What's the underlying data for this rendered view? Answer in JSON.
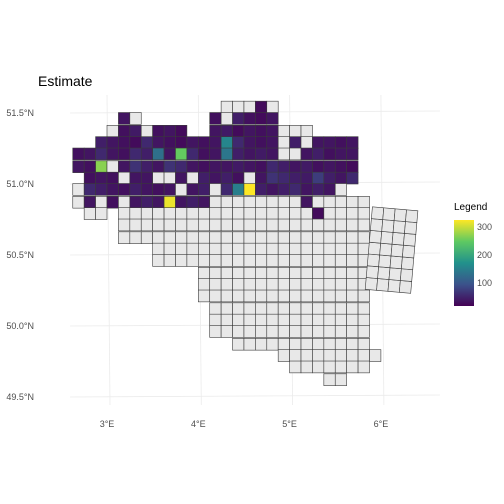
{
  "title": "Estimate",
  "axes": {
    "x_ticks": [
      "3°E",
      "4°E",
      "5°E",
      "6°E"
    ],
    "y_ticks": [
      "51.5°N",
      "51.0°N",
      "50.5°N",
      "50.0°N",
      "49.5°N"
    ]
  },
  "legend": {
    "title": "Legend",
    "ticks": [
      "300",
      "200",
      "100"
    ],
    "color_scale": "viridis",
    "range": [
      0,
      330
    ]
  },
  "colors": {
    "missing": "#e8e8e8",
    "cell_border": "#3a3a3a",
    "low": "#440154",
    "high": "#fde725"
  },
  "chart_data": {
    "type": "heatmap",
    "description_of_values": "estimate per grid cell; null = no estimate (grey)",
    "x_range_deg": [
      2.5,
      6.4
    ],
    "y_range_deg": [
      49.45,
      51.55
    ],
    "cell_size_deg": [
      0.125,
      0.0833
    ],
    "rows": [
      {
        "lat": 51.5,
        "cells": [
          [
            4.25,
            null
          ],
          [
            4.375,
            null
          ],
          [
            4.5,
            null
          ],
          [
            4.625,
            10
          ],
          [
            4.75,
            null
          ]
        ]
      },
      {
        "lat": 51.42,
        "cells": [
          [
            3.125,
            20
          ],
          [
            3.25,
            null
          ],
          [
            4.125,
            15
          ],
          [
            4.25,
            null
          ],
          [
            4.375,
            30
          ],
          [
            4.5,
            15
          ],
          [
            4.625,
            10
          ],
          [
            4.75,
            20
          ]
        ]
      },
      {
        "lat": 51.33,
        "cells": [
          [
            3.0,
            null
          ],
          [
            3.125,
            15
          ],
          [
            3.25,
            25
          ],
          [
            3.375,
            null
          ],
          [
            3.5,
            15
          ],
          [
            3.625,
            20
          ],
          [
            3.75,
            10
          ],
          [
            4.125,
            20
          ],
          [
            4.25,
            25
          ],
          [
            4.375,
            10
          ],
          [
            4.5,
            20
          ],
          [
            4.625,
            15
          ],
          [
            4.75,
            20
          ],
          [
            4.875,
            null
          ],
          [
            5.0,
            null
          ],
          [
            5.125,
            null
          ]
        ]
      },
      {
        "lat": 51.25,
        "cells": [
          [
            2.875,
            30
          ],
          [
            3.0,
            20
          ],
          [
            3.125,
            15
          ],
          [
            3.25,
            10
          ],
          [
            3.375,
            40
          ],
          [
            3.5,
            20
          ],
          [
            3.625,
            15
          ],
          [
            3.75,
            10
          ],
          [
            3.875,
            20
          ],
          [
            4.0,
            15
          ],
          [
            4.125,
            20
          ],
          [
            4.25,
            150
          ],
          [
            4.375,
            40
          ],
          [
            4.5,
            20
          ],
          [
            4.625,
            15
          ],
          [
            4.75,
            20
          ],
          [
            4.875,
            null
          ],
          [
            5.0,
            30
          ],
          [
            5.125,
            null
          ],
          [
            5.25,
            20
          ],
          [
            5.375,
            20
          ],
          [
            5.5,
            15
          ],
          [
            5.625,
            20
          ]
        ]
      },
      {
        "lat": 51.17,
        "cells": [
          [
            2.625,
            15
          ],
          [
            2.75,
            20
          ],
          [
            2.875,
            40
          ],
          [
            3.0,
            20
          ],
          [
            3.125,
            15
          ],
          [
            3.25,
            40
          ],
          [
            3.375,
            30
          ],
          [
            3.5,
            120
          ],
          [
            3.625,
            20
          ],
          [
            3.75,
            250
          ],
          [
            3.875,
            40
          ],
          [
            4.0,
            15
          ],
          [
            4.125,
            20
          ],
          [
            4.25,
            130
          ],
          [
            4.375,
            30
          ],
          [
            4.5,
            20
          ],
          [
            4.625,
            25
          ],
          [
            4.75,
            20
          ],
          [
            4.875,
            null
          ],
          [
            5.0,
            null
          ],
          [
            5.125,
            20
          ],
          [
            5.25,
            30
          ],
          [
            5.375,
            15
          ],
          [
            5.5,
            20
          ],
          [
            5.625,
            20
          ]
        ]
      },
      {
        "lat": 51.08,
        "cells": [
          [
            2.625,
            20
          ],
          [
            2.75,
            15
          ],
          [
            2.875,
            270
          ],
          [
            3.0,
            null
          ],
          [
            3.125,
            20
          ],
          [
            3.25,
            50
          ],
          [
            3.375,
            30
          ],
          [
            3.5,
            20
          ],
          [
            3.625,
            50
          ],
          [
            3.75,
            40
          ],
          [
            3.875,
            20
          ],
          [
            4.0,
            15
          ],
          [
            4.125,
            20
          ],
          [
            4.25,
            20
          ],
          [
            4.375,
            25
          ],
          [
            4.5,
            20
          ],
          [
            4.625,
            15
          ],
          [
            4.75,
            40
          ],
          [
            4.875,
            30
          ],
          [
            5.0,
            20
          ],
          [
            5.125,
            25
          ],
          [
            5.25,
            15
          ],
          [
            5.375,
            20
          ],
          [
            5.5,
            15
          ],
          [
            5.625,
            10
          ]
        ]
      },
      {
        "lat": 51.0,
        "cells": [
          [
            2.75,
            15
          ],
          [
            2.875,
            20
          ],
          [
            3.0,
            15
          ],
          [
            3.125,
            null
          ],
          [
            3.25,
            20
          ],
          [
            3.375,
            20
          ],
          [
            3.5,
            null
          ],
          [
            3.625,
            null
          ],
          [
            3.75,
            20
          ],
          [
            3.875,
            null
          ],
          [
            4.0,
            30
          ],
          [
            4.125,
            20
          ],
          [
            4.25,
            30
          ],
          [
            4.375,
            15
          ],
          [
            4.5,
            null
          ],
          [
            4.625,
            20
          ],
          [
            4.75,
            50
          ],
          [
            4.875,
            40
          ],
          [
            5.0,
            30
          ],
          [
            5.125,
            25
          ],
          [
            5.25,
            60
          ],
          [
            5.375,
            30
          ],
          [
            5.5,
            20
          ],
          [
            5.625,
            40
          ]
        ]
      },
      {
        "lat": 50.92,
        "cells": [
          [
            2.625,
            null
          ],
          [
            2.75,
            40
          ],
          [
            2.875,
            30
          ],
          [
            3.0,
            20
          ],
          [
            3.125,
            15
          ],
          [
            3.25,
            30
          ],
          [
            3.375,
            20
          ],
          [
            3.5,
            15
          ],
          [
            3.625,
            20
          ],
          [
            3.75,
            null
          ],
          [
            3.875,
            20
          ],
          [
            4.0,
            30
          ],
          [
            4.125,
            null
          ],
          [
            4.25,
            40
          ],
          [
            4.375,
            140
          ],
          [
            4.5,
            330
          ],
          [
            4.625,
            30
          ],
          [
            4.75,
            20
          ],
          [
            4.875,
            30
          ],
          [
            5.0,
            40
          ],
          [
            5.125,
            20
          ],
          [
            5.25,
            30
          ],
          [
            5.375,
            20
          ],
          [
            5.5,
            null
          ]
        ]
      },
      {
        "lat": 50.83,
        "cells": [
          [
            2.625,
            null
          ],
          [
            2.75,
            20
          ],
          [
            2.875,
            null
          ],
          [
            3.0,
            15
          ],
          [
            3.125,
            null
          ],
          [
            3.25,
            20
          ],
          [
            3.375,
            30
          ],
          [
            3.5,
            20
          ],
          [
            3.625,
            320
          ],
          [
            3.75,
            20
          ],
          [
            3.875,
            30
          ],
          [
            4.0,
            20
          ],
          [
            4.125,
            null
          ],
          [
            4.25,
            null
          ],
          [
            4.375,
            null
          ],
          [
            4.5,
            null
          ],
          [
            4.625,
            null
          ],
          [
            4.75,
            null
          ],
          [
            4.875,
            null
          ],
          [
            5.0,
            null
          ],
          [
            5.125,
            20
          ],
          [
            5.25,
            null
          ],
          [
            5.375,
            null
          ],
          [
            5.5,
            null
          ],
          [
            5.625,
            null
          ],
          [
            5.75,
            null
          ]
        ]
      },
      {
        "lat": 50.75,
        "cells": [
          [
            2.75,
            null
          ],
          [
            2.875,
            null
          ],
          [
            3.125,
            null
          ],
          [
            3.25,
            null
          ],
          [
            3.375,
            null
          ],
          [
            3.5,
            null
          ],
          [
            3.625,
            null
          ],
          [
            3.75,
            null
          ],
          [
            3.875,
            null
          ],
          [
            4.0,
            null
          ],
          [
            4.125,
            null
          ],
          [
            4.25,
            null
          ],
          [
            4.375,
            null
          ],
          [
            4.5,
            null
          ],
          [
            4.625,
            null
          ],
          [
            4.75,
            null
          ],
          [
            4.875,
            null
          ],
          [
            5.0,
            null
          ],
          [
            5.125,
            null
          ],
          [
            5.25,
            10
          ],
          [
            5.375,
            null
          ],
          [
            5.5,
            null
          ],
          [
            5.625,
            null
          ],
          [
            5.75,
            null
          ]
        ]
      }
    ]
  }
}
